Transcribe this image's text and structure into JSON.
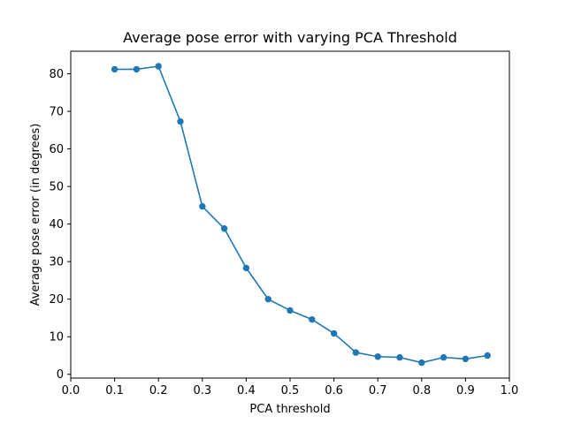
{
  "chart_data": {
    "type": "line",
    "title": "Average pose error with varying PCA Threshold",
    "xlabel": "PCA threshold",
    "ylabel": "Average pose error (in degrees)",
    "xlim": [
      0.0,
      1.0
    ],
    "ylim": [
      -1,
      86
    ],
    "xticks": [
      "0.0",
      "0.1",
      "0.2",
      "0.3",
      "0.4",
      "0.5",
      "0.6",
      "0.7",
      "0.8",
      "0.9",
      "1.0"
    ],
    "yticks": [
      "0",
      "10",
      "20",
      "30",
      "40",
      "50",
      "60",
      "70",
      "80"
    ],
    "grid": false,
    "series": [
      {
        "color": "#1f77b4",
        "marker": "circle",
        "x": [
          0.1,
          0.15,
          0.2,
          0.25,
          0.3,
          0.35,
          0.4,
          0.45,
          0.5,
          0.55,
          0.6,
          0.65,
          0.7,
          0.75,
          0.8,
          0.85,
          0.9,
          0.95
        ],
        "y": [
          81.2,
          81.2,
          82.0,
          67.3,
          44.7,
          38.8,
          28.3,
          20.0,
          17.0,
          14.6,
          10.9,
          5.8,
          4.7,
          4.5,
          3.1,
          4.5,
          4.1,
          5.0
        ]
      }
    ]
  }
}
